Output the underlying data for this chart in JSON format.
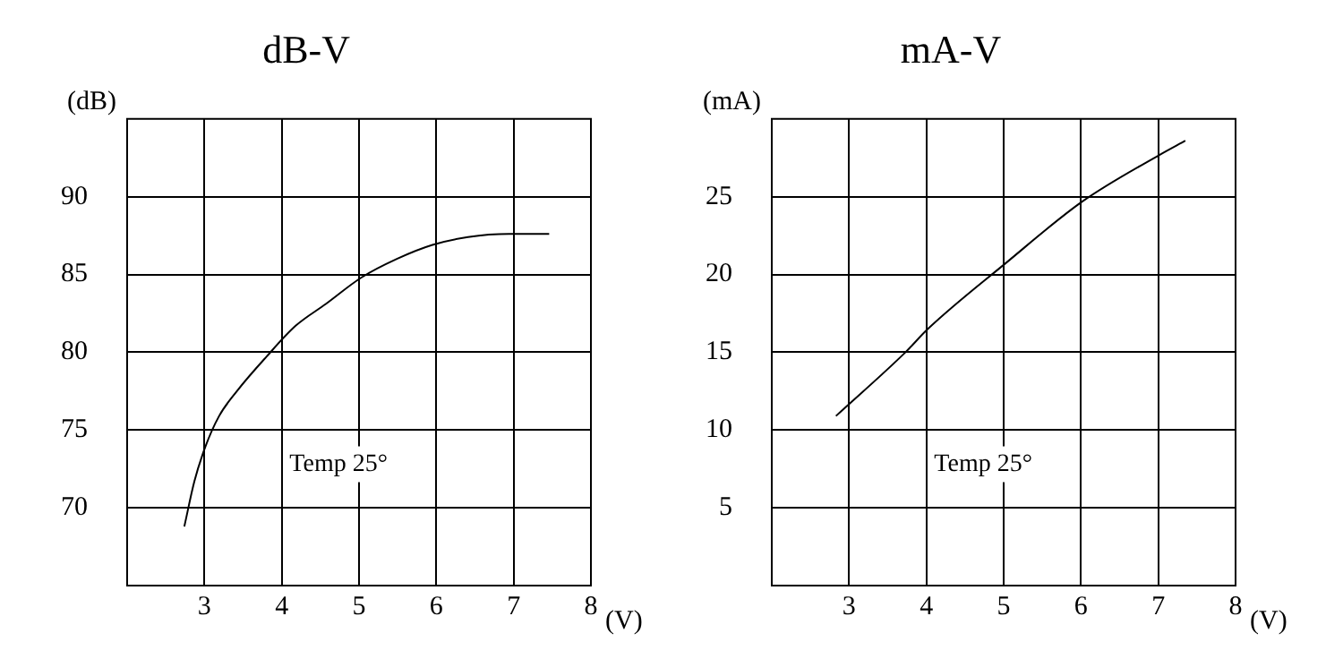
{
  "chart_data": [
    {
      "type": "line",
      "title": "dB-V",
      "xlabel": "(V)",
      "ylabel": "(dB)",
      "x": [
        2.74,
        2.87,
        3.01,
        3.19,
        3.42,
        3.8,
        4.18,
        4.57,
        5.03,
        5.49,
        5.95,
        6.41,
        6.94,
        7.46
      ],
      "series": [
        {
          "color": "#000000",
          "values": [
            68.8,
            71.7,
            73.9,
            75.9,
            77.5,
            79.7,
            81.7,
            83.1,
            84.8,
            86.0,
            86.9,
            87.4,
            87.6,
            87.6
          ]
        }
      ],
      "xlim": [
        2,
        8
      ],
      "xticks": [
        3,
        4,
        5,
        6,
        7,
        8
      ],
      "ylim": [
        65,
        95
      ],
      "yticks": [
        70,
        75,
        80,
        85,
        90
      ],
      "grid": true,
      "legend": false,
      "marker": "none",
      "line_style": "solid",
      "annotations": [
        "Temp 25°"
      ]
    },
    {
      "type": "line",
      "title": "mA-V",
      "xlabel": "(V)",
      "ylabel": "(mA)",
      "x": [
        2.83,
        3.73,
        4.02,
        5.02,
        6.02,
        7.02,
        7.35
      ],
      "series": [
        {
          "color": "#000000",
          "values": [
            10.9,
            15.0,
            16.5,
            20.7,
            24.7,
            27.7,
            28.6
          ]
        }
      ],
      "xlim": [
        2,
        8
      ],
      "xticks": [
        3,
        4,
        5,
        6,
        7,
        8
      ],
      "ylim": [
        0,
        30
      ],
      "yticks": [
        5,
        10,
        15,
        20,
        25
      ],
      "grid": true,
      "legend": false,
      "marker": "none",
      "line_style": "solid",
      "annotations": [
        "Temp 25°"
      ]
    }
  ]
}
